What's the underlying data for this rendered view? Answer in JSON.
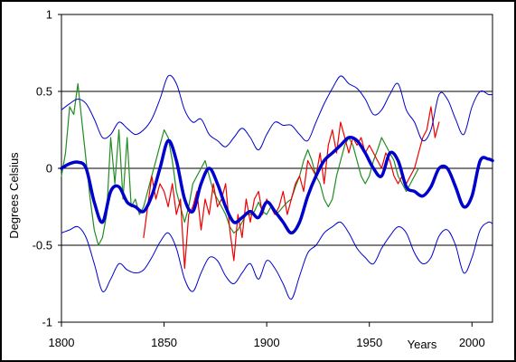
{
  "chart_data": {
    "type": "line",
    "title": "",
    "xlabel": "Years",
    "ylabel": "Degrees Celsius",
    "xlim": [
      1800,
      2010
    ],
    "ylim": [
      -1,
      1
    ],
    "x_ticks": [
      "1800",
      "1850",
      "1900",
      "1950",
      "2000"
    ],
    "y_ticks": [
      "1",
      "0.5",
      "0",
      "-0.5",
      "-1"
    ],
    "grid": "horizontal at 0.5 steps",
    "legend": "none",
    "series": [
      {
        "color": "#0000cc",
        "style": "thin",
        "x": [
          1800,
          1804,
          1808,
          1812,
          1816,
          1820,
          1824,
          1828,
          1832,
          1836,
          1840,
          1844,
          1848,
          1852,
          1856,
          1860,
          1864,
          1868,
          1872,
          1876,
          1880,
          1884,
          1888,
          1892,
          1896,
          1900,
          1904,
          1908,
          1912,
          1916,
          1920,
          1924,
          1928,
          1932,
          1936,
          1940,
          1944,
          1948,
          1952,
          1956,
          1960,
          1964,
          1968,
          1972,
          1976,
          1980,
          1984,
          1988,
          1992,
          1996,
          2000,
          2004,
          2008,
          2010
        ],
        "y": [
          0.38,
          0.42,
          0.45,
          0.42,
          0.32,
          0.2,
          0.22,
          0.3,
          0.26,
          0.22,
          0.25,
          0.32,
          0.45,
          0.6,
          0.55,
          0.38,
          0.3,
          0.32,
          0.22,
          0.18,
          0.14,
          0.2,
          0.26,
          0.2,
          0.12,
          0.22,
          0.3,
          0.28,
          0.28,
          0.22,
          0.18,
          0.3,
          0.42,
          0.52,
          0.6,
          0.55,
          0.52,
          0.45,
          0.35,
          0.38,
          0.48,
          0.55,
          0.38,
          0.3,
          0.18,
          0.25,
          0.48,
          0.45,
          0.32,
          0.22,
          0.4,
          0.5,
          0.48,
          0.48
        ]
      },
      {
        "color": "#0000cc",
        "style": "thin",
        "x": [
          1800,
          1804,
          1808,
          1812,
          1816,
          1820,
          1824,
          1828,
          1832,
          1836,
          1840,
          1844,
          1848,
          1852,
          1856,
          1860,
          1864,
          1868,
          1872,
          1876,
          1880,
          1884,
          1888,
          1892,
          1896,
          1900,
          1904,
          1908,
          1912,
          1916,
          1920,
          1924,
          1928,
          1932,
          1936,
          1940,
          1944,
          1948,
          1952,
          1956,
          1960,
          1964,
          1968,
          1972,
          1976,
          1980,
          1984,
          1988,
          1992,
          1996,
          2000,
          2004,
          2008,
          2010
        ],
        "y": [
          -0.42,
          -0.4,
          -0.38,
          -0.45,
          -0.62,
          -0.8,
          -0.72,
          -0.62,
          -0.66,
          -0.68,
          -0.66,
          -0.58,
          -0.48,
          -0.42,
          -0.52,
          -0.72,
          -0.8,
          -0.68,
          -0.58,
          -0.6,
          -0.7,
          -0.75,
          -0.68,
          -0.62,
          -0.72,
          -0.6,
          -0.65,
          -0.75,
          -0.85,
          -0.7,
          -0.55,
          -0.5,
          -0.42,
          -0.38,
          -0.35,
          -0.42,
          -0.52,
          -0.58,
          -0.62,
          -0.52,
          -0.44,
          -0.38,
          -0.42,
          -0.55,
          -0.62,
          -0.58,
          -0.44,
          -0.4,
          -0.5,
          -0.68,
          -0.58,
          -0.4,
          -0.35,
          -0.36
        ]
      },
      {
        "color": "#0000cc",
        "style": "thick",
        "x": [
          1800,
          1804,
          1808,
          1812,
          1816,
          1820,
          1824,
          1828,
          1832,
          1836,
          1840,
          1844,
          1848,
          1852,
          1856,
          1860,
          1864,
          1868,
          1872,
          1876,
          1880,
          1884,
          1888,
          1892,
          1896,
          1900,
          1904,
          1908,
          1912,
          1916,
          1920,
          1924,
          1928,
          1932,
          1936,
          1940,
          1944,
          1948,
          1952,
          1956,
          1960,
          1964,
          1968,
          1972,
          1976,
          1980,
          1984,
          1988,
          1992,
          1996,
          2000,
          2004,
          2008,
          2010
        ],
        "y": [
          0.0,
          0.03,
          0.04,
          0.0,
          -0.22,
          -0.35,
          -0.15,
          -0.12,
          -0.22,
          -0.25,
          -0.28,
          -0.18,
          0.0,
          0.18,
          0.05,
          -0.2,
          -0.28,
          -0.1,
          0.0,
          -0.1,
          -0.25,
          -0.35,
          -0.32,
          -0.28,
          -0.32,
          -0.22,
          -0.28,
          -0.35,
          -0.42,
          -0.35,
          -0.18,
          -0.05,
          0.05,
          0.1,
          0.15,
          0.2,
          0.18,
          0.1,
          0.0,
          -0.05,
          0.1,
          0.05,
          -0.12,
          -0.15,
          -0.18,
          -0.12,
          0.0,
          0.0,
          -0.12,
          -0.25,
          -0.18,
          0.05,
          0.06,
          0.05
        ]
      },
      {
        "color": "#228b22",
        "style": "noisy",
        "x": [
          1800,
          1802,
          1804,
          1806,
          1808,
          1810,
          1812,
          1814,
          1816,
          1818,
          1820,
          1822,
          1824,
          1826,
          1828,
          1830,
          1832,
          1834,
          1836,
          1838,
          1840,
          1842,
          1844,
          1846,
          1848,
          1850,
          1852,
          1854,
          1856,
          1858,
          1860,
          1862,
          1864,
          1866,
          1868,
          1870,
          1872,
          1874,
          1876,
          1878,
          1880,
          1882,
          1884,
          1886,
          1888,
          1890,
          1892,
          1894,
          1896,
          1898,
          1900,
          1902,
          1904,
          1906,
          1908,
          1910,
          1912,
          1914,
          1916,
          1918,
          1920,
          1922,
          1924,
          1926,
          1928,
          1930,
          1932,
          1934,
          1936,
          1938,
          1940,
          1942,
          1944,
          1946,
          1948,
          1950,
          1952,
          1954,
          1956,
          1958,
          1960,
          1962,
          1964,
          1966,
          1968,
          1970,
          1972,
          1974
        ],
        "y": [
          -0.05,
          0.1,
          0.4,
          0.35,
          0.55,
          0.3,
          0.05,
          -0.2,
          -0.4,
          -0.5,
          -0.45,
          -0.3,
          0.2,
          -0.1,
          0.25,
          -0.2,
          0.2,
          -0.25,
          -0.2,
          -0.3,
          -0.25,
          -0.15,
          -0.05,
          0.05,
          0.15,
          0.25,
          0.2,
          0.05,
          -0.15,
          -0.25,
          -0.35,
          -0.25,
          -0.1,
          -0.05,
          0.0,
          0.05,
          -0.05,
          -0.15,
          -0.2,
          -0.25,
          -0.3,
          -0.38,
          -0.42,
          -0.4,
          -0.35,
          -0.3,
          -0.3,
          -0.28,
          -0.22,
          -0.28,
          -0.3,
          -0.25,
          -0.3,
          -0.28,
          -0.25,
          -0.22,
          -0.2,
          -0.12,
          -0.05,
          0.05,
          0.12,
          0.05,
          -0.05,
          -0.1,
          -0.2,
          -0.25,
          -0.2,
          -0.05,
          0.05,
          0.15,
          0.2,
          0.15,
          0.05,
          -0.05,
          -0.1,
          -0.05,
          0.05,
          0.12,
          0.2,
          0.15,
          0.1,
          0.05,
          -0.05,
          -0.1,
          -0.15,
          -0.1,
          -0.05,
          0.0
        ]
      },
      {
        "color": "#ee0000",
        "style": "noisy",
        "x": [
          1840,
          1842,
          1844,
          1846,
          1848,
          1850,
          1852,
          1854,
          1856,
          1858,
          1860,
          1862,
          1864,
          1866,
          1868,
          1870,
          1872,
          1874,
          1876,
          1878,
          1880,
          1882,
          1884,
          1886,
          1888,
          1890,
          1892,
          1894,
          1896,
          1898,
          1900,
          1902,
          1904,
          1906,
          1908,
          1910,
          1912,
          1914,
          1916,
          1918,
          1920,
          1922,
          1924,
          1926,
          1928,
          1930,
          1932,
          1934,
          1936,
          1938,
          1940,
          1942,
          1944,
          1946,
          1948,
          1950,
          1952,
          1954,
          1956,
          1958,
          1960,
          1962,
          1964,
          1966,
          1968,
          1970,
          1972,
          1974,
          1976,
          1978,
          1980,
          1982,
          1984
        ],
        "y": [
          -0.45,
          -0.25,
          -0.05,
          -0.2,
          -0.1,
          -0.15,
          -0.25,
          -0.1,
          -0.3,
          -0.2,
          -0.65,
          -0.3,
          -0.25,
          -0.15,
          -0.4,
          -0.2,
          -0.3,
          -0.1,
          -0.25,
          -0.2,
          -0.1,
          -0.4,
          -0.6,
          -0.3,
          -0.45,
          -0.2,
          -0.35,
          -0.2,
          -0.15,
          -0.3,
          -0.2,
          -0.25,
          -0.3,
          -0.25,
          -0.15,
          -0.3,
          -0.2,
          -0.1,
          -0.05,
          -0.15,
          0.05,
          0.0,
          -0.05,
          0.1,
          -0.1,
          0.15,
          0.25,
          0.1,
          0.3,
          0.2,
          0.1,
          0.2,
          0.15,
          0.2,
          0.1,
          0.15,
          0.1,
          0.05,
          0.0,
          0.1,
          0.05,
          -0.05,
          -0.1,
          -0.05,
          -0.1,
          -0.05,
          0.0,
          0.1,
          0.2,
          0.25,
          0.4,
          0.2,
          0.3
        ]
      }
    ]
  }
}
